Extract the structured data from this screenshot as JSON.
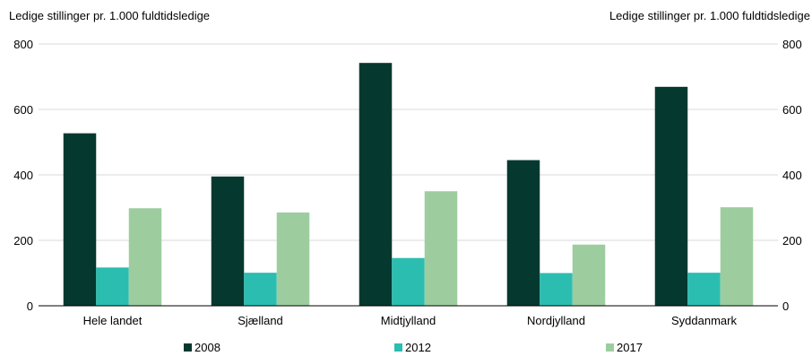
{
  "chart_data": {
    "type": "bar",
    "ylabel_left": "Ledige stillinger pr. 1.000 fuldtidsledige",
    "ylabel_right": "Ledige stillinger pr. 1.000 fuldtidsledige",
    "categories": [
      "Hele landet",
      "Sjælland",
      "Midtjylland",
      "Nordjylland",
      "Syddanmark"
    ],
    "ylim": [
      0,
      800
    ],
    "yticks": [
      "0",
      "200",
      "400",
      "600",
      "800"
    ],
    "grid": true,
    "legend_position": "bottom",
    "series": [
      {
        "name": "2008",
        "color": "#05392f",
        "values": [
          527,
          395,
          742,
          445,
          669
        ]
      },
      {
        "name": "2012",
        "color": "#2cbdb1",
        "values": [
          117,
          101,
          146,
          100,
          101
        ]
      },
      {
        "name": "2017",
        "color": "#9dcd9f",
        "values": [
          298,
          285,
          350,
          187,
          301
        ]
      }
    ]
  }
}
